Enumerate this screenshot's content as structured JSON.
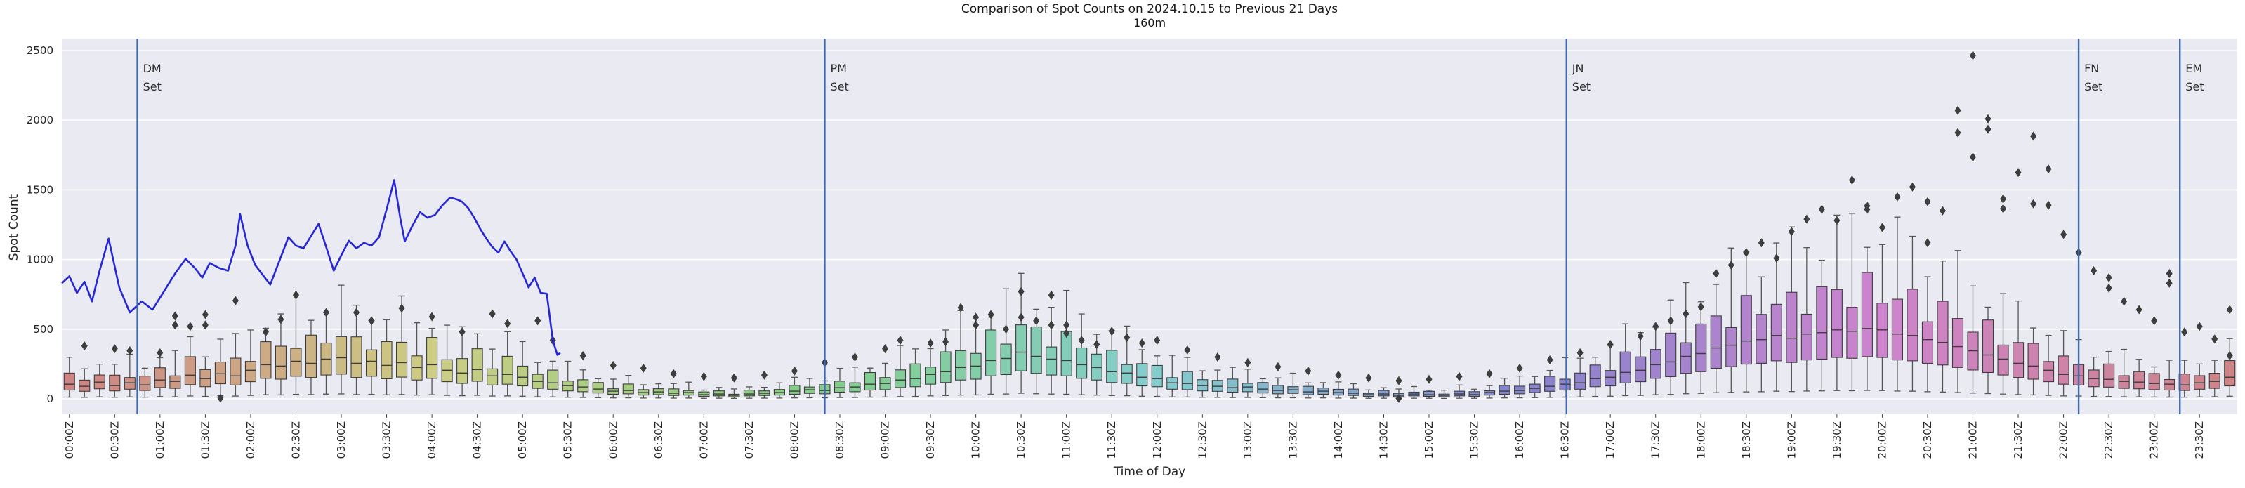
{
  "title": "Comparison of Spot Counts on 2024.10.15 to Previous 21 Days",
  "subtitle": "160m",
  "axes": {
    "x_label": "Time of Day",
    "y_label": "Spot Count",
    "y_ticks": [
      0,
      500,
      1000,
      1500,
      2000,
      2500
    ],
    "y_max": 2500,
    "x_tick_labels": [
      "00:00Z",
      "00:30Z",
      "01:00Z",
      "01:30Z",
      "02:00Z",
      "02:30Z",
      "03:00Z",
      "03:30Z",
      "04:00Z",
      "04:30Z",
      "05:00Z",
      "05:30Z",
      "06:00Z",
      "06:30Z",
      "07:00Z",
      "07:30Z",
      "08:00Z",
      "08:30Z",
      "09:00Z",
      "09:30Z",
      "10:00Z",
      "10:30Z",
      "11:00Z",
      "11:30Z",
      "12:00Z",
      "12:30Z",
      "13:00Z",
      "13:30Z",
      "14:00Z",
      "14:30Z",
      "15:00Z",
      "15:30Z",
      "16:00Z",
      "16:30Z",
      "17:00Z",
      "17:30Z",
      "18:00Z",
      "18:30Z",
      "19:00Z",
      "19:30Z",
      "20:00Z",
      "20:30Z",
      "21:00Z",
      "21:30Z",
      "22:00Z",
      "22:30Z",
      "23:00Z",
      "23:30Z"
    ]
  },
  "events": [
    {
      "line1": "DM",
      "line2": "Set",
      "minute": 50
    },
    {
      "line1": "PM",
      "line2": "Set",
      "minute": 505
    },
    {
      "line1": "JN",
      "line2": "Set",
      "minute": 996
    },
    {
      "line1": "FN",
      "line2": "Set",
      "minute": 1335
    },
    {
      "line1": "EM",
      "line2": "Set",
      "minute": 1402
    }
  ],
  "colors": {
    "plot_background": "#eaeaf2",
    "gridline": "#ffffff",
    "box_edge": "#3d3d3d",
    "whisker": "#555555",
    "flier": "#3d3d3d",
    "today_line": "#2727d4",
    "event_line": "#4169ae",
    "tick_text": "#262626",
    "event_text": "#2e2e2e"
  },
  "chart_data": {
    "type": "box+line",
    "box_interval_minutes": 10,
    "num_boxes": 144,
    "ylim": [
      0,
      2500
    ],
    "legend": "none",
    "grid": "horizontal-only",
    "box_palette": {
      "type": "hsl-cycle",
      "hue_step_deg": 2.5,
      "saturation_pct": 42,
      "lightness_pct": 66
    },
    "box_medians": [
      105,
      90,
      120,
      95,
      115,
      100,
      135,
      125,
      170,
      145,
      180,
      165,
      205,
      245,
      235,
      270,
      255,
      285,
      295,
      255,
      270,
      240,
      260,
      225,
      245,
      205,
      185,
      210,
      165,
      175,
      155,
      125,
      115,
      95,
      85,
      70,
      55,
      60,
      45,
      50,
      40,
      45,
      30,
      35,
      25,
      35,
      40,
      45,
      55,
      65,
      60,
      80,
      85,
      105,
      110,
      135,
      145,
      175,
      195,
      225,
      235,
      275,
      290,
      335,
      305,
      285,
      275,
      245,
      225,
      195,
      185,
      155,
      145,
      115,
      110,
      95,
      90,
      80,
      85,
      70,
      60,
      65,
      50,
      55,
      45,
      40,
      30,
      35,
      25,
      35,
      30,
      25,
      35,
      30,
      45,
      55,
      60,
      75,
      90,
      105,
      115,
      145,
      155,
      190,
      205,
      245,
      265,
      305,
      325,
      365,
      385,
      415,
      425,
      455,
      435,
      465,
      475,
      495,
      485,
      505,
      495,
      465,
      455,
      425,
      405,
      375,
      345,
      315,
      285,
      255,
      235,
      205,
      175,
      165,
      145,
      140,
      125,
      120,
      110,
      105,
      100,
      115,
      125,
      155
    ],
    "box_model": {
      "q1_ratio": 0.6,
      "q3_ratio": 1.55,
      "whisker_low_ratio": 0.12,
      "whisker_high_ratio": 2.45,
      "spread_jitter": 0.16
    },
    "fliers": [
      [
        1,
        380
      ],
      [
        3,
        360
      ],
      [
        4,
        345
      ],
      [
        6,
        330
      ],
      [
        7,
        595
      ],
      [
        7,
        530
      ],
      [
        8,
        520
      ],
      [
        9,
        605
      ],
      [
        9,
        530
      ],
      [
        10,
        5
      ],
      [
        11,
        705
      ],
      [
        13,
        480
      ],
      [
        14,
        570
      ],
      [
        15,
        745
      ],
      [
        17,
        620
      ],
      [
        19,
        620
      ],
      [
        20,
        560
      ],
      [
        22,
        650
      ],
      [
        24,
        590
      ],
      [
        26,
        480
      ],
      [
        28,
        610
      ],
      [
        29,
        540
      ],
      [
        31,
        560
      ],
      [
        32,
        420
      ],
      [
        34,
        310
      ],
      [
        36,
        240
      ],
      [
        38,
        220
      ],
      [
        40,
        180
      ],
      [
        42,
        160
      ],
      [
        44,
        150
      ],
      [
        46,
        170
      ],
      [
        48,
        200
      ],
      [
        50,
        260
      ],
      [
        52,
        300
      ],
      [
        54,
        360
      ],
      [
        55,
        420
      ],
      [
        57,
        400
      ],
      [
        58,
        410
      ],
      [
        59,
        655
      ],
      [
        60,
        585
      ],
      [
        60,
        530
      ],
      [
        61,
        605
      ],
      [
        62,
        500
      ],
      [
        63,
        770
      ],
      [
        63,
        585
      ],
      [
        64,
        560
      ],
      [
        65,
        745
      ],
      [
        65,
        530
      ],
      [
        66,
        530
      ],
      [
        66,
        470
      ],
      [
        67,
        420
      ],
      [
        68,
        390
      ],
      [
        69,
        485
      ],
      [
        70,
        440
      ],
      [
        71,
        400
      ],
      [
        72,
        420
      ],
      [
        74,
        350
      ],
      [
        76,
        300
      ],
      [
        78,
        260
      ],
      [
        80,
        230
      ],
      [
        82,
        200
      ],
      [
        84,
        170
      ],
      [
        86,
        150
      ],
      [
        88,
        3
      ],
      [
        88,
        130
      ],
      [
        90,
        140
      ],
      [
        92,
        160
      ],
      [
        94,
        180
      ],
      [
        96,
        220
      ],
      [
        98,
        280
      ],
      [
        100,
        330
      ],
      [
        102,
        390
      ],
      [
        104,
        450
      ],
      [
        105,
        520
      ],
      [
        106,
        560
      ],
      [
        107,
        610
      ],
      [
        108,
        660
      ],
      [
        109,
        900
      ],
      [
        110,
        960
      ],
      [
        111,
        1050
      ],
      [
        112,
        1120
      ],
      [
        113,
        1010
      ],
      [
        114,
        1200
      ],
      [
        115,
        1290
      ],
      [
        116,
        1360
      ],
      [
        117,
        1280
      ],
      [
        118,
        1570
      ],
      [
        119,
        1385
      ],
      [
        119,
        1360
      ],
      [
        120,
        1230
      ],
      [
        121,
        1450
      ],
      [
        122,
        1520
      ],
      [
        123,
        1415
      ],
      [
        123,
        1120
      ],
      [
        124,
        1350
      ],
      [
        125,
        2070
      ],
      [
        125,
        1910
      ],
      [
        126,
        2465
      ],
      [
        126,
        1735
      ],
      [
        127,
        2010
      ],
      [
        127,
        1935
      ],
      [
        128,
        1435
      ],
      [
        128,
        1365
      ],
      [
        129,
        1625
      ],
      [
        130,
        1885
      ],
      [
        130,
        1400
      ],
      [
        131,
        1650
      ],
      [
        131,
        1390
      ],
      [
        132,
        1180
      ],
      [
        133,
        1050
      ],
      [
        134,
        920
      ],
      [
        135,
        870
      ],
      [
        135,
        795
      ],
      [
        136,
        700
      ],
      [
        137,
        640
      ],
      [
        138,
        560
      ],
      [
        139,
        900
      ],
      [
        139,
        830
      ],
      [
        140,
        480
      ],
      [
        141,
        520
      ],
      [
        142,
        430
      ],
      [
        143,
        640
      ],
      [
        143,
        310
      ]
    ],
    "line_series": {
      "name": "2024.10.15",
      "points": [
        [
          -5,
          830
        ],
        [
          0,
          880
        ],
        [
          5,
          760
        ],
        [
          10,
          840
        ],
        [
          15,
          700
        ],
        [
          20,
          920
        ],
        [
          26,
          1150
        ],
        [
          33,
          800
        ],
        [
          40,
          620
        ],
        [
          48,
          700
        ],
        [
          55,
          640
        ],
        [
          62,
          760
        ],
        [
          70,
          900
        ],
        [
          77,
          1005
        ],
        [
          83,
          940
        ],
        [
          88,
          870
        ],
        [
          93,
          975
        ],
        [
          99,
          940
        ],
        [
          105,
          920
        ],
        [
          110,
          1100
        ],
        [
          113,
          1325
        ],
        [
          118,
          1100
        ],
        [
          123,
          960
        ],
        [
          128,
          890
        ],
        [
          133,
          820
        ],
        [
          139,
          990
        ],
        [
          145,
          1160
        ],
        [
          150,
          1100
        ],
        [
          155,
          1080
        ],
        [
          160,
          1170
        ],
        [
          165,
          1255
        ],
        [
          170,
          1090
        ],
        [
          175,
          920
        ],
        [
          180,
          1030
        ],
        [
          185,
          1135
        ],
        [
          190,
          1080
        ],
        [
          195,
          1120
        ],
        [
          200,
          1100
        ],
        [
          205,
          1160
        ],
        [
          210,
          1360
        ],
        [
          215,
          1570
        ],
        [
          219,
          1300
        ],
        [
          222,
          1130
        ],
        [
          227,
          1240
        ],
        [
          232,
          1340
        ],
        [
          237,
          1300
        ],
        [
          242,
          1320
        ],
        [
          247,
          1390
        ],
        [
          252,
          1445
        ],
        [
          257,
          1430
        ],
        [
          260,
          1415
        ],
        [
          264,
          1370
        ],
        [
          268,
          1300
        ],
        [
          272,
          1220
        ],
        [
          276,
          1150
        ],
        [
          280,
          1090
        ],
        [
          284,
          1050
        ],
        [
          288,
          1130
        ],
        [
          292,
          1060
        ],
        [
          296,
          1000
        ],
        [
          300,
          900
        ],
        [
          304,
          800
        ],
        [
          308,
          870
        ],
        [
          312,
          760
        ],
        [
          316,
          755
        ],
        [
          320,
          420
        ],
        [
          323,
          315
        ],
        [
          325,
          330
        ]
      ]
    }
  }
}
